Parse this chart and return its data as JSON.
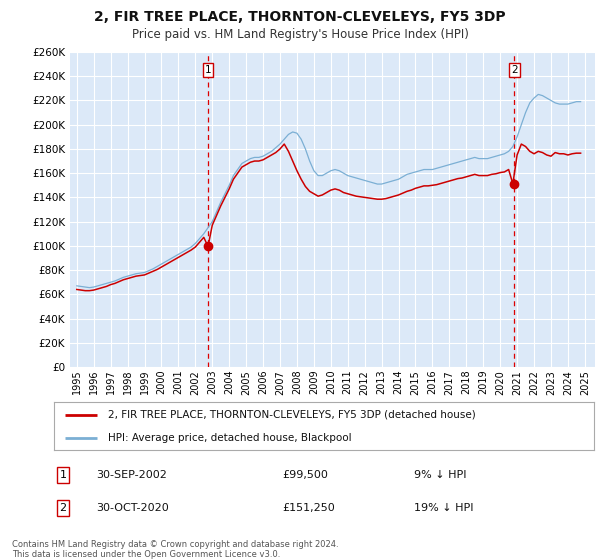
{
  "title": "2, FIR TREE PLACE, THORNTON-CLEVELEYS, FY5 3DP",
  "subtitle": "Price paid vs. HM Land Registry's House Price Index (HPI)",
  "ylim": [
    0,
    260000
  ],
  "yticks": [
    0,
    20000,
    40000,
    60000,
    80000,
    100000,
    120000,
    140000,
    160000,
    180000,
    200000,
    220000,
    240000,
    260000
  ],
  "ytick_labels": [
    "£0",
    "£20K",
    "£40K",
    "£60K",
    "£80K",
    "£100K",
    "£120K",
    "£140K",
    "£160K",
    "£180K",
    "£200K",
    "£220K",
    "£240K",
    "£260K"
  ],
  "xlim_start": 1994.6,
  "xlim_end": 2025.6,
  "xticks": [
    1995,
    1996,
    1997,
    1998,
    1999,
    2000,
    2001,
    2002,
    2003,
    2004,
    2005,
    2006,
    2007,
    2008,
    2009,
    2010,
    2011,
    2012,
    2013,
    2014,
    2015,
    2016,
    2017,
    2018,
    2019,
    2020,
    2021,
    2022,
    2023,
    2024,
    2025
  ],
  "background_color": "#ffffff",
  "plot_bg_color": "#dce9f8",
  "grid_color": "#ffffff",
  "sale_color": "#cc0000",
  "hpi_color": "#7bafd4",
  "marker_color": "#cc0000",
  "vline_color": "#dd0000",
  "legend_label_sale": "2, FIR TREE PLACE, THORNTON-CLEVELEYS, FY5 3DP (detached house)",
  "legend_label_hpi": "HPI: Average price, detached house, Blackpool",
  "sale1_x": 2002.75,
  "sale1_y": 99500,
  "sale1_label": "1",
  "sale2_x": 2020.83,
  "sale2_y": 151250,
  "sale2_label": "2",
  "annotation1_date": "30-SEP-2002",
  "annotation1_price": "£99,500",
  "annotation1_hpi": "9% ↓ HPI",
  "annotation2_date": "30-OCT-2020",
  "annotation2_price": "£151,250",
  "annotation2_hpi": "19% ↓ HPI",
  "footnote": "Contains HM Land Registry data © Crown copyright and database right 2024.\nThis data is licensed under the Open Government Licence v3.0.",
  "hpi_data": [
    [
      1995.0,
      67000
    ],
    [
      1995.25,
      66500
    ],
    [
      1995.5,
      66000
    ],
    [
      1995.75,
      65500
    ],
    [
      1996.0,
      66000
    ],
    [
      1996.25,
      67000
    ],
    [
      1996.5,
      68000
    ],
    [
      1996.75,
      69000
    ],
    [
      1997.0,
      70000
    ],
    [
      1997.25,
      71000
    ],
    [
      1997.5,
      72500
    ],
    [
      1997.75,
      74000
    ],
    [
      1998.0,
      75000
    ],
    [
      1998.25,
      76000
    ],
    [
      1998.5,
      77000
    ],
    [
      1998.75,
      77500
    ],
    [
      1999.0,
      78000
    ],
    [
      1999.25,
      79500
    ],
    [
      1999.5,
      81000
    ],
    [
      1999.75,
      83000
    ],
    [
      2000.0,
      85000
    ],
    [
      2000.25,
      87000
    ],
    [
      2000.5,
      89000
    ],
    [
      2000.75,
      91000
    ],
    [
      2001.0,
      93000
    ],
    [
      2001.25,
      95000
    ],
    [
      2001.5,
      97000
    ],
    [
      2001.75,
      99000
    ],
    [
      2002.0,
      102000
    ],
    [
      2002.25,
      106000
    ],
    [
      2002.5,
      110000
    ],
    [
      2002.75,
      115000
    ],
    [
      2003.0,
      120000
    ],
    [
      2003.25,
      128000
    ],
    [
      2003.5,
      136000
    ],
    [
      2003.75,
      143000
    ],
    [
      2004.0,
      150000
    ],
    [
      2004.25,
      158000
    ],
    [
      2004.5,
      163000
    ],
    [
      2004.75,
      168000
    ],
    [
      2005.0,
      170000
    ],
    [
      2005.25,
      172000
    ],
    [
      2005.5,
      173000
    ],
    [
      2005.75,
      173000
    ],
    [
      2006.0,
      174000
    ],
    [
      2006.25,
      176000
    ],
    [
      2006.5,
      178000
    ],
    [
      2006.75,
      181000
    ],
    [
      2007.0,
      184000
    ],
    [
      2007.25,
      188000
    ],
    [
      2007.5,
      192000
    ],
    [
      2007.75,
      194000
    ],
    [
      2008.0,
      193000
    ],
    [
      2008.25,
      188000
    ],
    [
      2008.5,
      180000
    ],
    [
      2008.75,
      170000
    ],
    [
      2009.0,
      162000
    ],
    [
      2009.25,
      158000
    ],
    [
      2009.5,
      158000
    ],
    [
      2009.75,
      160000
    ],
    [
      2010.0,
      162000
    ],
    [
      2010.25,
      163000
    ],
    [
      2010.5,
      162000
    ],
    [
      2010.75,
      160000
    ],
    [
      2011.0,
      158000
    ],
    [
      2011.25,
      157000
    ],
    [
      2011.5,
      156000
    ],
    [
      2011.75,
      155000
    ],
    [
      2012.0,
      154000
    ],
    [
      2012.25,
      153000
    ],
    [
      2012.5,
      152000
    ],
    [
      2012.75,
      151000
    ],
    [
      2013.0,
      151000
    ],
    [
      2013.25,
      152000
    ],
    [
      2013.5,
      153000
    ],
    [
      2013.75,
      154000
    ],
    [
      2014.0,
      155000
    ],
    [
      2014.25,
      157000
    ],
    [
      2014.5,
      159000
    ],
    [
      2014.75,
      160000
    ],
    [
      2015.0,
      161000
    ],
    [
      2015.25,
      162000
    ],
    [
      2015.5,
      163000
    ],
    [
      2015.75,
      163000
    ],
    [
      2016.0,
      163000
    ],
    [
      2016.25,
      164000
    ],
    [
      2016.5,
      165000
    ],
    [
      2016.75,
      166000
    ],
    [
      2017.0,
      167000
    ],
    [
      2017.25,
      168000
    ],
    [
      2017.5,
      169000
    ],
    [
      2017.75,
      170000
    ],
    [
      2018.0,
      171000
    ],
    [
      2018.25,
      172000
    ],
    [
      2018.5,
      173000
    ],
    [
      2018.75,
      172000
    ],
    [
      2019.0,
      172000
    ],
    [
      2019.25,
      172000
    ],
    [
      2019.5,
      173000
    ],
    [
      2019.75,
      174000
    ],
    [
      2020.0,
      175000
    ],
    [
      2020.25,
      176000
    ],
    [
      2020.5,
      178000
    ],
    [
      2020.75,
      182000
    ],
    [
      2021.0,
      190000
    ],
    [
      2021.25,
      200000
    ],
    [
      2021.5,
      210000
    ],
    [
      2021.75,
      218000
    ],
    [
      2022.0,
      222000
    ],
    [
      2022.25,
      225000
    ],
    [
      2022.5,
      224000
    ],
    [
      2022.75,
      222000
    ],
    [
      2023.0,
      220000
    ],
    [
      2023.25,
      218000
    ],
    [
      2023.5,
      217000
    ],
    [
      2023.75,
      217000
    ],
    [
      2024.0,
      217000
    ],
    [
      2024.25,
      218000
    ],
    [
      2024.5,
      219000
    ],
    [
      2024.75,
      219000
    ]
  ],
  "sale_hpi_data": [
    [
      1995.0,
      64000
    ],
    [
      1995.25,
      63500
    ],
    [
      1995.5,
      63000
    ],
    [
      1995.75,
      63000
    ],
    [
      1996.0,
      63500
    ],
    [
      1996.25,
      64500
    ],
    [
      1996.5,
      65500
    ],
    [
      1996.75,
      66500
    ],
    [
      1997.0,
      68000
    ],
    [
      1997.25,
      69000
    ],
    [
      1997.5,
      70500
    ],
    [
      1997.75,
      72000
    ],
    [
      1998.0,
      73000
    ],
    [
      1998.25,
      74000
    ],
    [
      1998.5,
      75000
    ],
    [
      1998.75,
      75500
    ],
    [
      1999.0,
      76000
    ],
    [
      1999.25,
      77500
    ],
    [
      1999.5,
      79000
    ],
    [
      1999.75,
      80500
    ],
    [
      2000.0,
      82500
    ],
    [
      2000.25,
      84500
    ],
    [
      2000.5,
      86500
    ],
    [
      2000.75,
      88500
    ],
    [
      2001.0,
      90500
    ],
    [
      2001.25,
      92500
    ],
    [
      2001.5,
      94500
    ],
    [
      2001.75,
      96500
    ],
    [
      2002.0,
      99000
    ],
    [
      2002.25,
      103000
    ],
    [
      2002.5,
      107000
    ],
    [
      2002.75,
      99500
    ],
    [
      2003.0,
      117000
    ],
    [
      2003.25,
      125000
    ],
    [
      2003.5,
      133000
    ],
    [
      2003.75,
      140000
    ],
    [
      2004.0,
      147000
    ],
    [
      2004.25,
      155000
    ],
    [
      2004.5,
      160000
    ],
    [
      2004.75,
      165000
    ],
    [
      2005.0,
      167000
    ],
    [
      2005.25,
      169000
    ],
    [
      2005.5,
      170000
    ],
    [
      2005.75,
      170000
    ],
    [
      2006.0,
      171000
    ],
    [
      2006.25,
      173000
    ],
    [
      2006.5,
      175000
    ],
    [
      2006.75,
      177000
    ],
    [
      2007.0,
      180000
    ],
    [
      2007.25,
      184000
    ],
    [
      2007.5,
      178000
    ],
    [
      2007.75,
      170000
    ],
    [
      2008.0,
      162000
    ],
    [
      2008.25,
      155000
    ],
    [
      2008.5,
      149000
    ],
    [
      2008.75,
      145000
    ],
    [
      2009.0,
      143000
    ],
    [
      2009.25,
      141000
    ],
    [
      2009.5,
      142000
    ],
    [
      2009.75,
      144000
    ],
    [
      2010.0,
      146000
    ],
    [
      2010.25,
      147000
    ],
    [
      2010.5,
      146000
    ],
    [
      2010.75,
      144000
    ],
    [
      2011.0,
      143000
    ],
    [
      2011.25,
      142000
    ],
    [
      2011.5,
      141000
    ],
    [
      2011.75,
      140500
    ],
    [
      2012.0,
      140000
    ],
    [
      2012.25,
      139500
    ],
    [
      2012.5,
      139000
    ],
    [
      2012.75,
      138500
    ],
    [
      2013.0,
      138500
    ],
    [
      2013.25,
      139000
    ],
    [
      2013.5,
      140000
    ],
    [
      2013.75,
      141000
    ],
    [
      2014.0,
      142000
    ],
    [
      2014.25,
      143500
    ],
    [
      2014.5,
      145000
    ],
    [
      2014.75,
      146000
    ],
    [
      2015.0,
      147500
    ],
    [
      2015.25,
      148500
    ],
    [
      2015.5,
      149500
    ],
    [
      2015.75,
      149500
    ],
    [
      2016.0,
      150000
    ],
    [
      2016.25,
      150500
    ],
    [
      2016.5,
      151500
    ],
    [
      2016.75,
      152500
    ],
    [
      2017.0,
      153500
    ],
    [
      2017.25,
      154500
    ],
    [
      2017.5,
      155500
    ],
    [
      2017.75,
      156000
    ],
    [
      2018.0,
      157000
    ],
    [
      2018.25,
      158000
    ],
    [
      2018.5,
      159000
    ],
    [
      2018.75,
      158000
    ],
    [
      2019.0,
      158000
    ],
    [
      2019.25,
      158000
    ],
    [
      2019.5,
      159000
    ],
    [
      2019.75,
      159500
    ],
    [
      2020.0,
      160500
    ],
    [
      2020.25,
      161000
    ],
    [
      2020.5,
      163000
    ],
    [
      2020.75,
      151250
    ],
    [
      2021.0,
      175000
    ],
    [
      2021.25,
      184000
    ],
    [
      2021.5,
      182000
    ],
    [
      2021.75,
      178000
    ],
    [
      2022.0,
      176000
    ],
    [
      2022.25,
      178000
    ],
    [
      2022.5,
      177000
    ],
    [
      2022.75,
      175000
    ],
    [
      2023.0,
      174000
    ],
    [
      2023.25,
      177000
    ],
    [
      2023.5,
      176000
    ],
    [
      2023.75,
      176000
    ],
    [
      2024.0,
      175000
    ],
    [
      2024.25,
      176000
    ],
    [
      2024.5,
      176500
    ],
    [
      2024.75,
      176500
    ]
  ]
}
